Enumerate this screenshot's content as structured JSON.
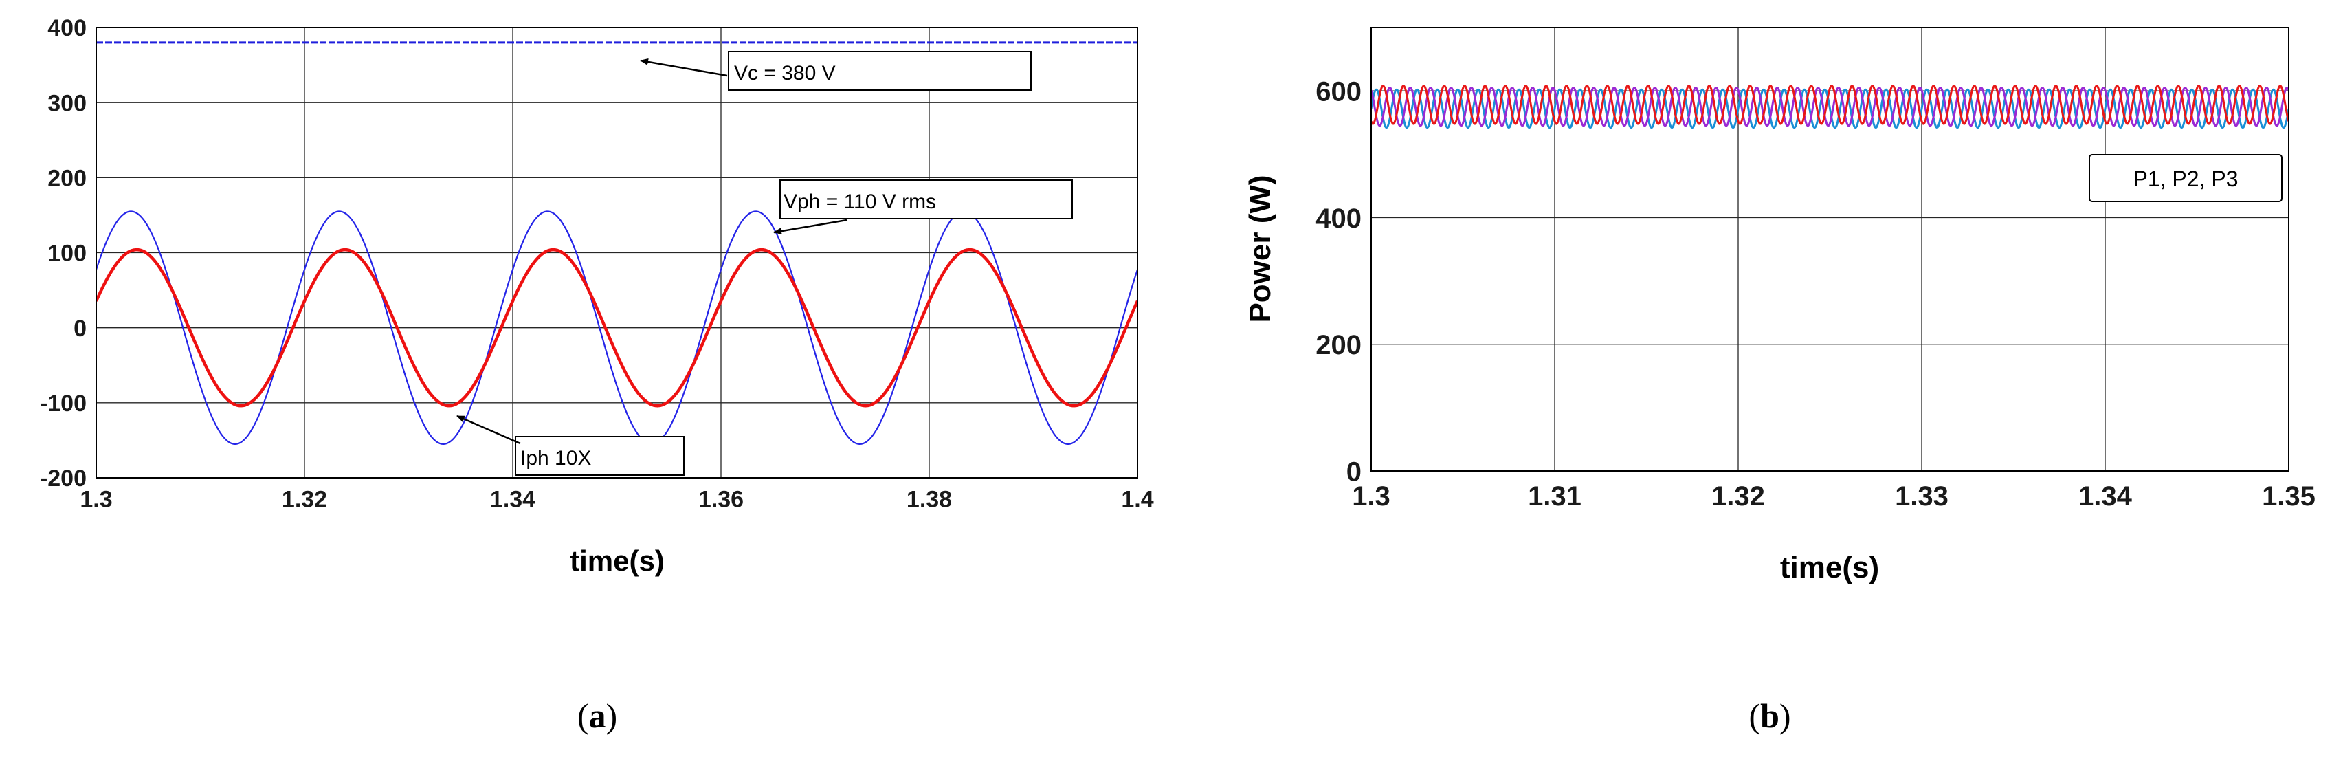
{
  "chart_data": [
    {
      "id": "a",
      "type": "line",
      "caption": {
        "open": "(",
        "letter": "a",
        "close": ")"
      },
      "xlabel": "time(s)",
      "ylabel": "",
      "xlim": [
        1.3,
        1.4
      ],
      "ylim": [
        -200,
        400
      ],
      "xticks": [
        "1.3",
        "1.32",
        "1.34",
        "1.36",
        "1.38",
        "1.4"
      ],
      "yticks": [
        "-200",
        "-100",
        "0",
        "100",
        "200",
        "300",
        "400"
      ],
      "grid": true,
      "series": [
        {
          "name": "Vc",
          "kind": "constant",
          "value": 380,
          "color": "#1f1fdc"
        },
        {
          "name": "Vph",
          "kind": "sine",
          "amplitude": 155,
          "frequency_hz": 50,
          "phase_deg": 30,
          "color": "#2424e8"
        },
        {
          "name": "Iph",
          "kind": "sine",
          "amplitude": 104,
          "frequency_hz": 50,
          "phase_deg": 20,
          "color": "#ee1111"
        }
      ],
      "annotations": [
        {
          "text": "Vc = 380 V",
          "target": [
            1.3375,
            380
          ]
        },
        {
          "text": "Vph = 110 V rms",
          "target": [
            1.365,
            110
          ]
        },
        {
          "text": "Iph  10X",
          "target": [
            1.3345,
            -90
          ]
        }
      ]
    },
    {
      "id": "b",
      "type": "line",
      "caption": {
        "open": "(",
        "letter": "b",
        "close": ")"
      },
      "xlabel": "time(s)",
      "ylabel": "Power (W)",
      "xlim": [
        1.3,
        1.35
      ],
      "ylim": [
        0,
        700
      ],
      "xticks": [
        "1.3",
        "1.31",
        "1.32",
        "1.33",
        "1.34",
        "1.35"
      ],
      "yticks": [
        "0",
        "200",
        "400",
        "600"
      ],
      "grid": true,
      "series": [
        {
          "name": "P1",
          "kind": "ripple",
          "mean": 572,
          "amplitude": 30,
          "frequency_hz": 900,
          "phase_deg": 0,
          "color": "#1a8fd6"
        },
        {
          "name": "P2",
          "kind": "ripple",
          "mean": 575,
          "amplitude": 30,
          "frequency_hz": 900,
          "phase_deg": 120,
          "color": "#9a2ad4"
        },
        {
          "name": "P3",
          "kind": "ripple",
          "mean": 578,
          "amplitude": 30,
          "frequency_hz": 900,
          "phase_deg": 240,
          "color": "#e81818"
        }
      ],
      "annotations": [
        {
          "text": "P1, P2, P3"
        }
      ]
    }
  ]
}
